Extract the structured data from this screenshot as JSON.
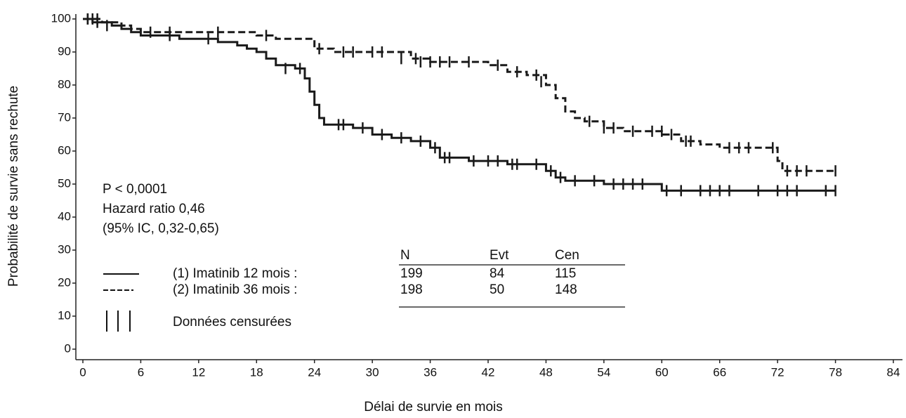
{
  "chart_data": {
    "type": "step",
    "x_label": "Délai de survie en mois",
    "y_label": "Probabilité de survie sans rechute",
    "xlim": [
      0,
      84
    ],
    "ylim": [
      0,
      100
    ],
    "xticks": [
      0,
      6,
      12,
      18,
      24,
      30,
      36,
      42,
      48,
      54,
      60,
      66,
      72,
      78,
      84
    ],
    "yticks": [
      0,
      10,
      20,
      30,
      40,
      50,
      60,
      70,
      80,
      90,
      100
    ],
    "annotations": [
      "P < 0,0001",
      "Hazard ratio 0,46",
      "(95% IC, 0,32-0,65)"
    ],
    "censor_label": "Données censurées",
    "series": [
      {
        "name": "(1) Imatinib 12 mois :",
        "color": "#1a1a1a",
        "dashed": false,
        "x": [
          0,
          1,
          3,
          4,
          5,
          6,
          8,
          10,
          12,
          14,
          16,
          17,
          18,
          19,
          20,
          22,
          23,
          23.5,
          24,
          24.5,
          25,
          26,
          28,
          30,
          32,
          34,
          36,
          37,
          40,
          44,
          48,
          49,
          50,
          54,
          60,
          78
        ],
        "values": [
          100,
          99,
          98,
          97,
          96,
          95,
          95,
          94,
          94,
          93,
          92,
          91,
          90,
          88,
          86,
          85,
          82,
          78,
          74,
          70,
          68,
          68,
          67,
          65,
          64,
          63,
          61,
          58,
          57,
          56,
          54,
          52,
          51,
          50,
          48,
          48
        ],
        "censored_x": [
          0.5,
          1.5,
          2.5,
          9,
          13,
          21,
          22.5,
          26.5,
          27,
          29,
          31,
          33,
          35,
          36.5,
          37.5,
          38,
          40.5,
          42,
          43,
          44.5,
          45,
          47,
          48.5,
          49.5,
          51,
          53,
          55,
          56,
          57,
          58,
          60.5,
          62,
          64,
          65,
          66,
          67,
          70,
          72,
          73,
          74,
          77,
          78
        ],
        "censored_values": [
          100,
          99,
          98,
          95,
          94,
          85,
          85,
          68,
          68,
          67,
          65,
          64,
          63,
          61,
          58,
          58,
          57,
          57,
          57,
          56,
          56,
          56,
          54,
          52,
          51,
          51,
          50,
          50,
          50,
          50,
          48,
          48,
          48,
          48,
          48,
          48,
          48,
          48,
          48,
          48,
          48,
          48
        ]
      },
      {
        "name": "(2) Imatinib 36 mois :",
        "color": "#1a1a1a",
        "dashed": true,
        "x": [
          0,
          2,
          4,
          5,
          6,
          8,
          12,
          18,
          20,
          24,
          26,
          34,
          36,
          42,
          44,
          46,
          48,
          49,
          50,
          51,
          52,
          54,
          56,
          60,
          62,
          64,
          66,
          70,
          72,
          72.5,
          78
        ],
        "values": [
          100,
          99,
          98,
          97,
          96,
          96,
          96,
          95,
          94,
          91,
          90,
          88,
          87,
          86,
          84,
          83,
          80,
          76,
          72,
          70,
          69,
          67,
          66,
          65,
          63,
          62,
          61,
          61,
          57,
          54,
          54
        ],
        "censored_x": [
          0.5,
          1,
          1.5,
          7,
          9,
          14,
          19,
          24.5,
          27,
          28,
          30,
          31,
          33,
          34.5,
          35,
          36,
          37,
          38,
          40,
          43,
          45,
          47,
          47.5,
          52.5,
          54,
          55,
          57,
          59,
          60,
          61,
          62.5,
          63,
          67,
          68,
          69,
          71.5,
          73,
          74,
          75,
          78
        ],
        "censored_values": [
          100,
          100,
          100,
          96,
          96,
          96,
          95,
          91,
          90,
          90,
          90,
          90,
          88,
          88,
          87,
          87,
          87,
          87,
          87,
          86,
          84,
          83,
          81,
          69,
          67,
          67,
          66,
          66,
          66,
          65,
          63,
          63,
          61,
          61,
          61,
          61,
          54,
          54,
          54,
          54
        ]
      }
    ],
    "table": {
      "columns": [
        "N",
        "Evt",
        "Cen"
      ],
      "rows": [
        [
          199,
          84,
          115
        ],
        [
          198,
          50,
          148
        ]
      ]
    }
  }
}
